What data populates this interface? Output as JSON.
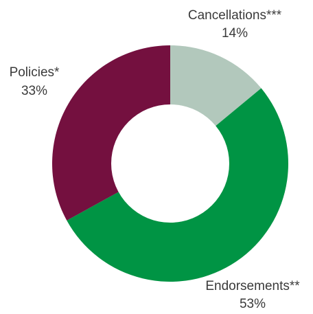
{
  "chart_data": {
    "type": "pie",
    "donut": true,
    "slices": [
      {
        "label": "Cancellations***",
        "value": 14,
        "display": "14%",
        "color": "#b2c8bc"
      },
      {
        "label": "Endorsements**",
        "value": 53,
        "display": "53%",
        "color": "#009444"
      },
      {
        "label": "Policies*",
        "value": 33,
        "display": "33%",
        "color": "#74103f"
      }
    ]
  }
}
